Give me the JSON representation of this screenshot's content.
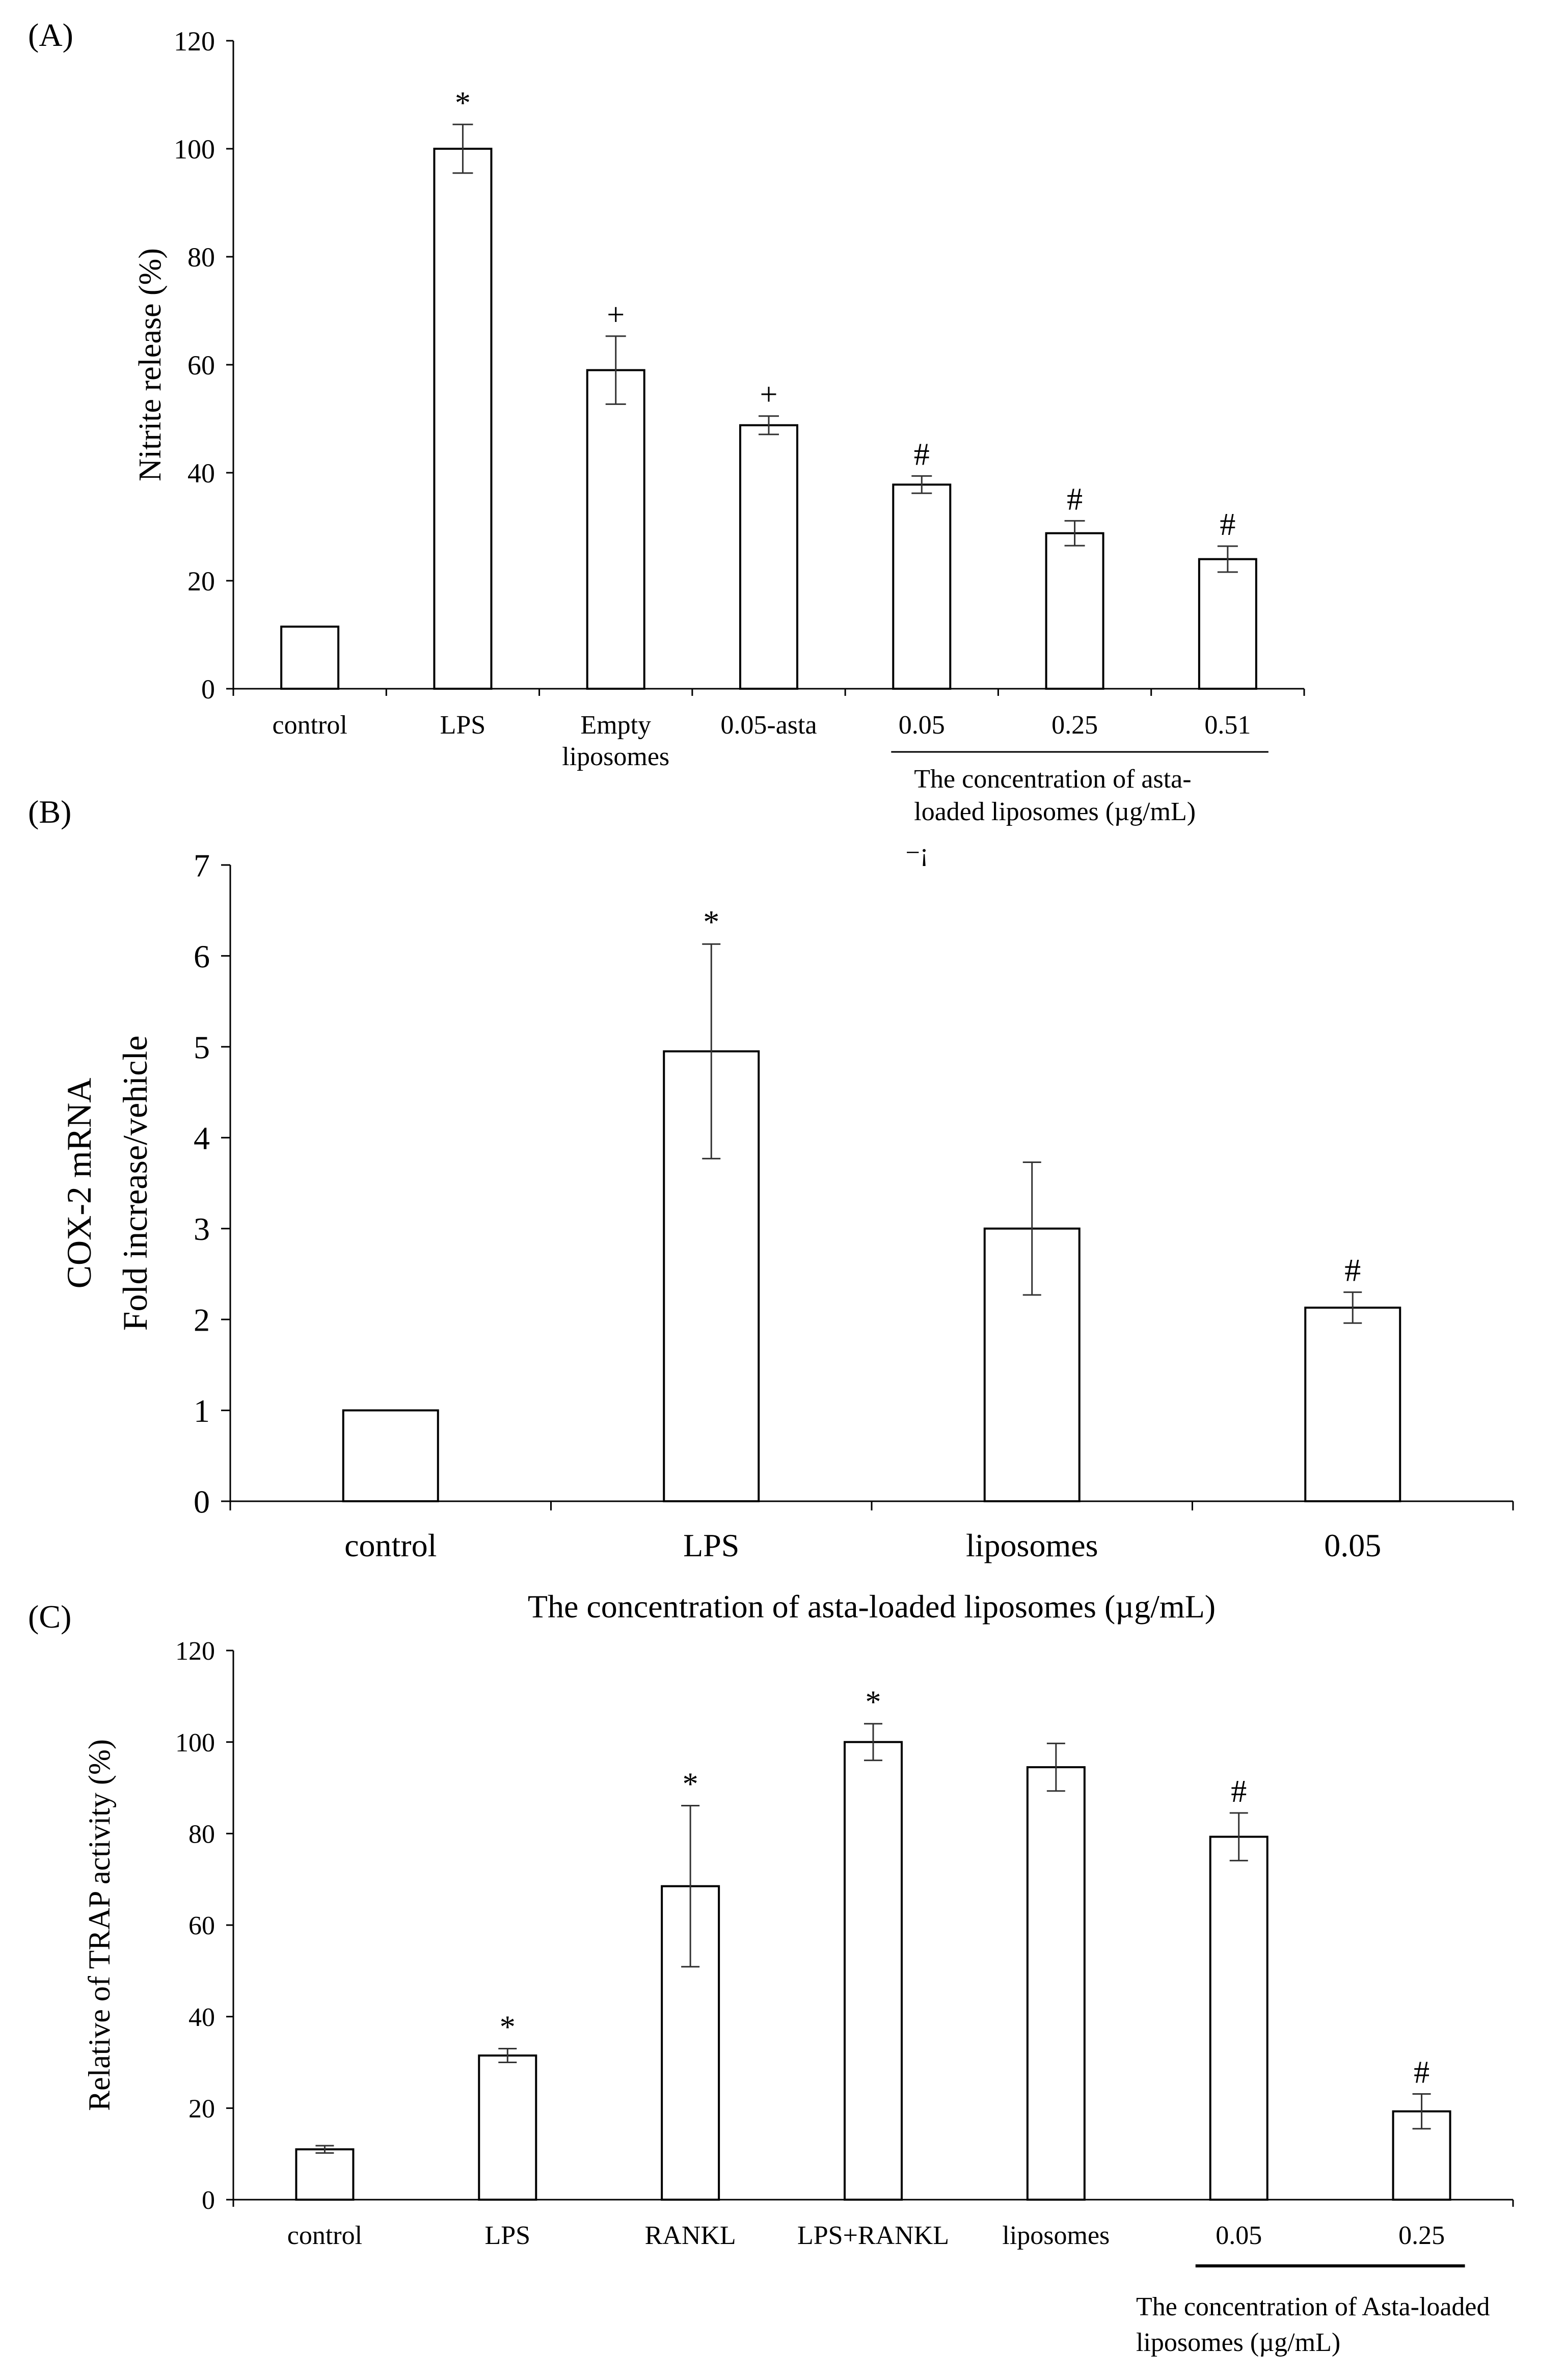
{
  "chart_data": [
    {
      "type": "bar",
      "panel_label": "(A)",
      "ylabel": "Nitrite release (%)",
      "xlabel": "",
      "ylim": [
        0,
        120
      ],
      "yticks": [
        0,
        20,
        40,
        60,
        80,
        100,
        120
      ],
      "categories": [
        {
          "lines": [
            "control"
          ]
        },
        {
          "lines": [
            "LPS"
          ]
        },
        {
          "lines": [
            "Empty",
            "liposomes"
          ]
        },
        {
          "lines": [
            "0.05-asta"
          ]
        },
        {
          "lines": [
            "0.05"
          ]
        },
        {
          "lines": [
            "0.25"
          ]
        },
        {
          "lines": [
            "0.51"
          ]
        }
      ],
      "values": [
        11.5,
        100,
        59,
        48.8,
        37.8,
        28.8,
        24
      ],
      "errors": [
        0,
        4.5,
        6.3,
        1.7,
        1.6,
        2.3,
        2.4
      ],
      "annotations": [
        "",
        "*",
        "+",
        "+",
        "#",
        "#",
        "#"
      ],
      "group_bracket": {
        "from": 4,
        "to": 6,
        "lines": [
          "The concentration of asta-",
          "loaded liposomes (µg/mL)"
        ]
      },
      "stray_mark": "−¡"
    },
    {
      "type": "bar",
      "panel_label": "(B)",
      "ylabel_lines": [
        "COX-2 mRNA",
        "Fold increase/vehicle"
      ],
      "xlabel": "The concentration of asta-loaded liposomes (µg/mL)",
      "ylim": [
        0,
        7
      ],
      "yticks": [
        0,
        1,
        2,
        3,
        4,
        5,
        6,
        7
      ],
      "categories": [
        {
          "lines": [
            "control"
          ]
        },
        {
          "lines": [
            "LPS"
          ]
        },
        {
          "lines": [
            "liposomes"
          ]
        },
        {
          "lines": [
            "0.05"
          ]
        }
      ],
      "values": [
        1,
        4.95,
        3,
        2.13
      ],
      "errors": [
        0,
        1.18,
        0.73,
        0.17
      ],
      "annotations": [
        "",
        "*",
        "",
        "#"
      ]
    },
    {
      "type": "bar",
      "panel_label": "(C)",
      "ylabel": "Relative of TRAP activity (%)",
      "xlabel": "",
      "ylim": [
        0,
        120
      ],
      "yticks": [
        0,
        20,
        40,
        60,
        80,
        100,
        120
      ],
      "categories": [
        {
          "lines": [
            "control"
          ]
        },
        {
          "lines": [
            "LPS"
          ]
        },
        {
          "lines": [
            "RANKL"
          ]
        },
        {
          "lines": [
            "LPS+RANKL"
          ]
        },
        {
          "lines": [
            "liposomes"
          ]
        },
        {
          "lines": [
            "0.05"
          ]
        },
        {
          "lines": [
            "0.25"
          ]
        }
      ],
      "values": [
        11,
        31.5,
        68.5,
        100,
        94.5,
        79.3,
        19.3
      ],
      "errors": [
        0.8,
        1.5,
        17.6,
        4,
        5.2,
        5.2,
        3.8
      ],
      "annotations": [
        "",
        "*",
        "*",
        "*",
        "",
        "#",
        "#"
      ],
      "group_bracket": {
        "from": 5,
        "to": 6,
        "lines": [
          "The concentration of Asta-loaded",
          "liposomes (µg/mL)"
        ]
      }
    }
  ]
}
